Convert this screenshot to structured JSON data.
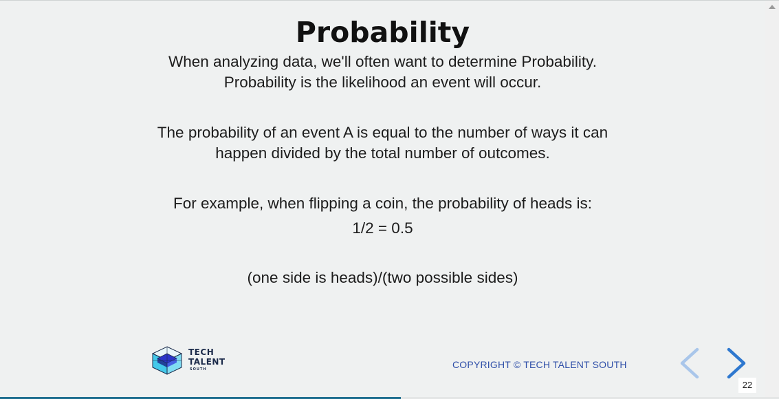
{
  "slide": {
    "title": "Probability",
    "paragraphs": {
      "intro_line1": "When analyzing data, we'll often want to determine Probability.",
      "intro_line2": "Probability is the likelihood an event will occur.",
      "definition_line1": "The probability of an event A is equal to the number of ways it can",
      "definition_line2": "happen divided by the total number of outcomes.",
      "example_line1": "For example, when flipping a coin, the probability of heads is:",
      "example_equation": "1/2 = 0.5",
      "explanation": "(one side is heads)/(two possible sides)"
    }
  },
  "footer": {
    "logo": {
      "line1": "TECH",
      "line2": "TALENT",
      "line3": "SOUTH",
      "icon": "cube-logo-icon"
    },
    "copyright": "COPYRIGHT © TECH TALENT SOUTH",
    "copyright_color": "#2f4fa8"
  },
  "navigation": {
    "prev_icon": "chevron-left-icon",
    "next_icon": "chevron-right-icon",
    "prev_color": "#a9c6ea",
    "next_color": "#2e78cf",
    "slide_number": "22"
  },
  "progress": {
    "fraction": 0.515,
    "color": "#1f6f90"
  }
}
